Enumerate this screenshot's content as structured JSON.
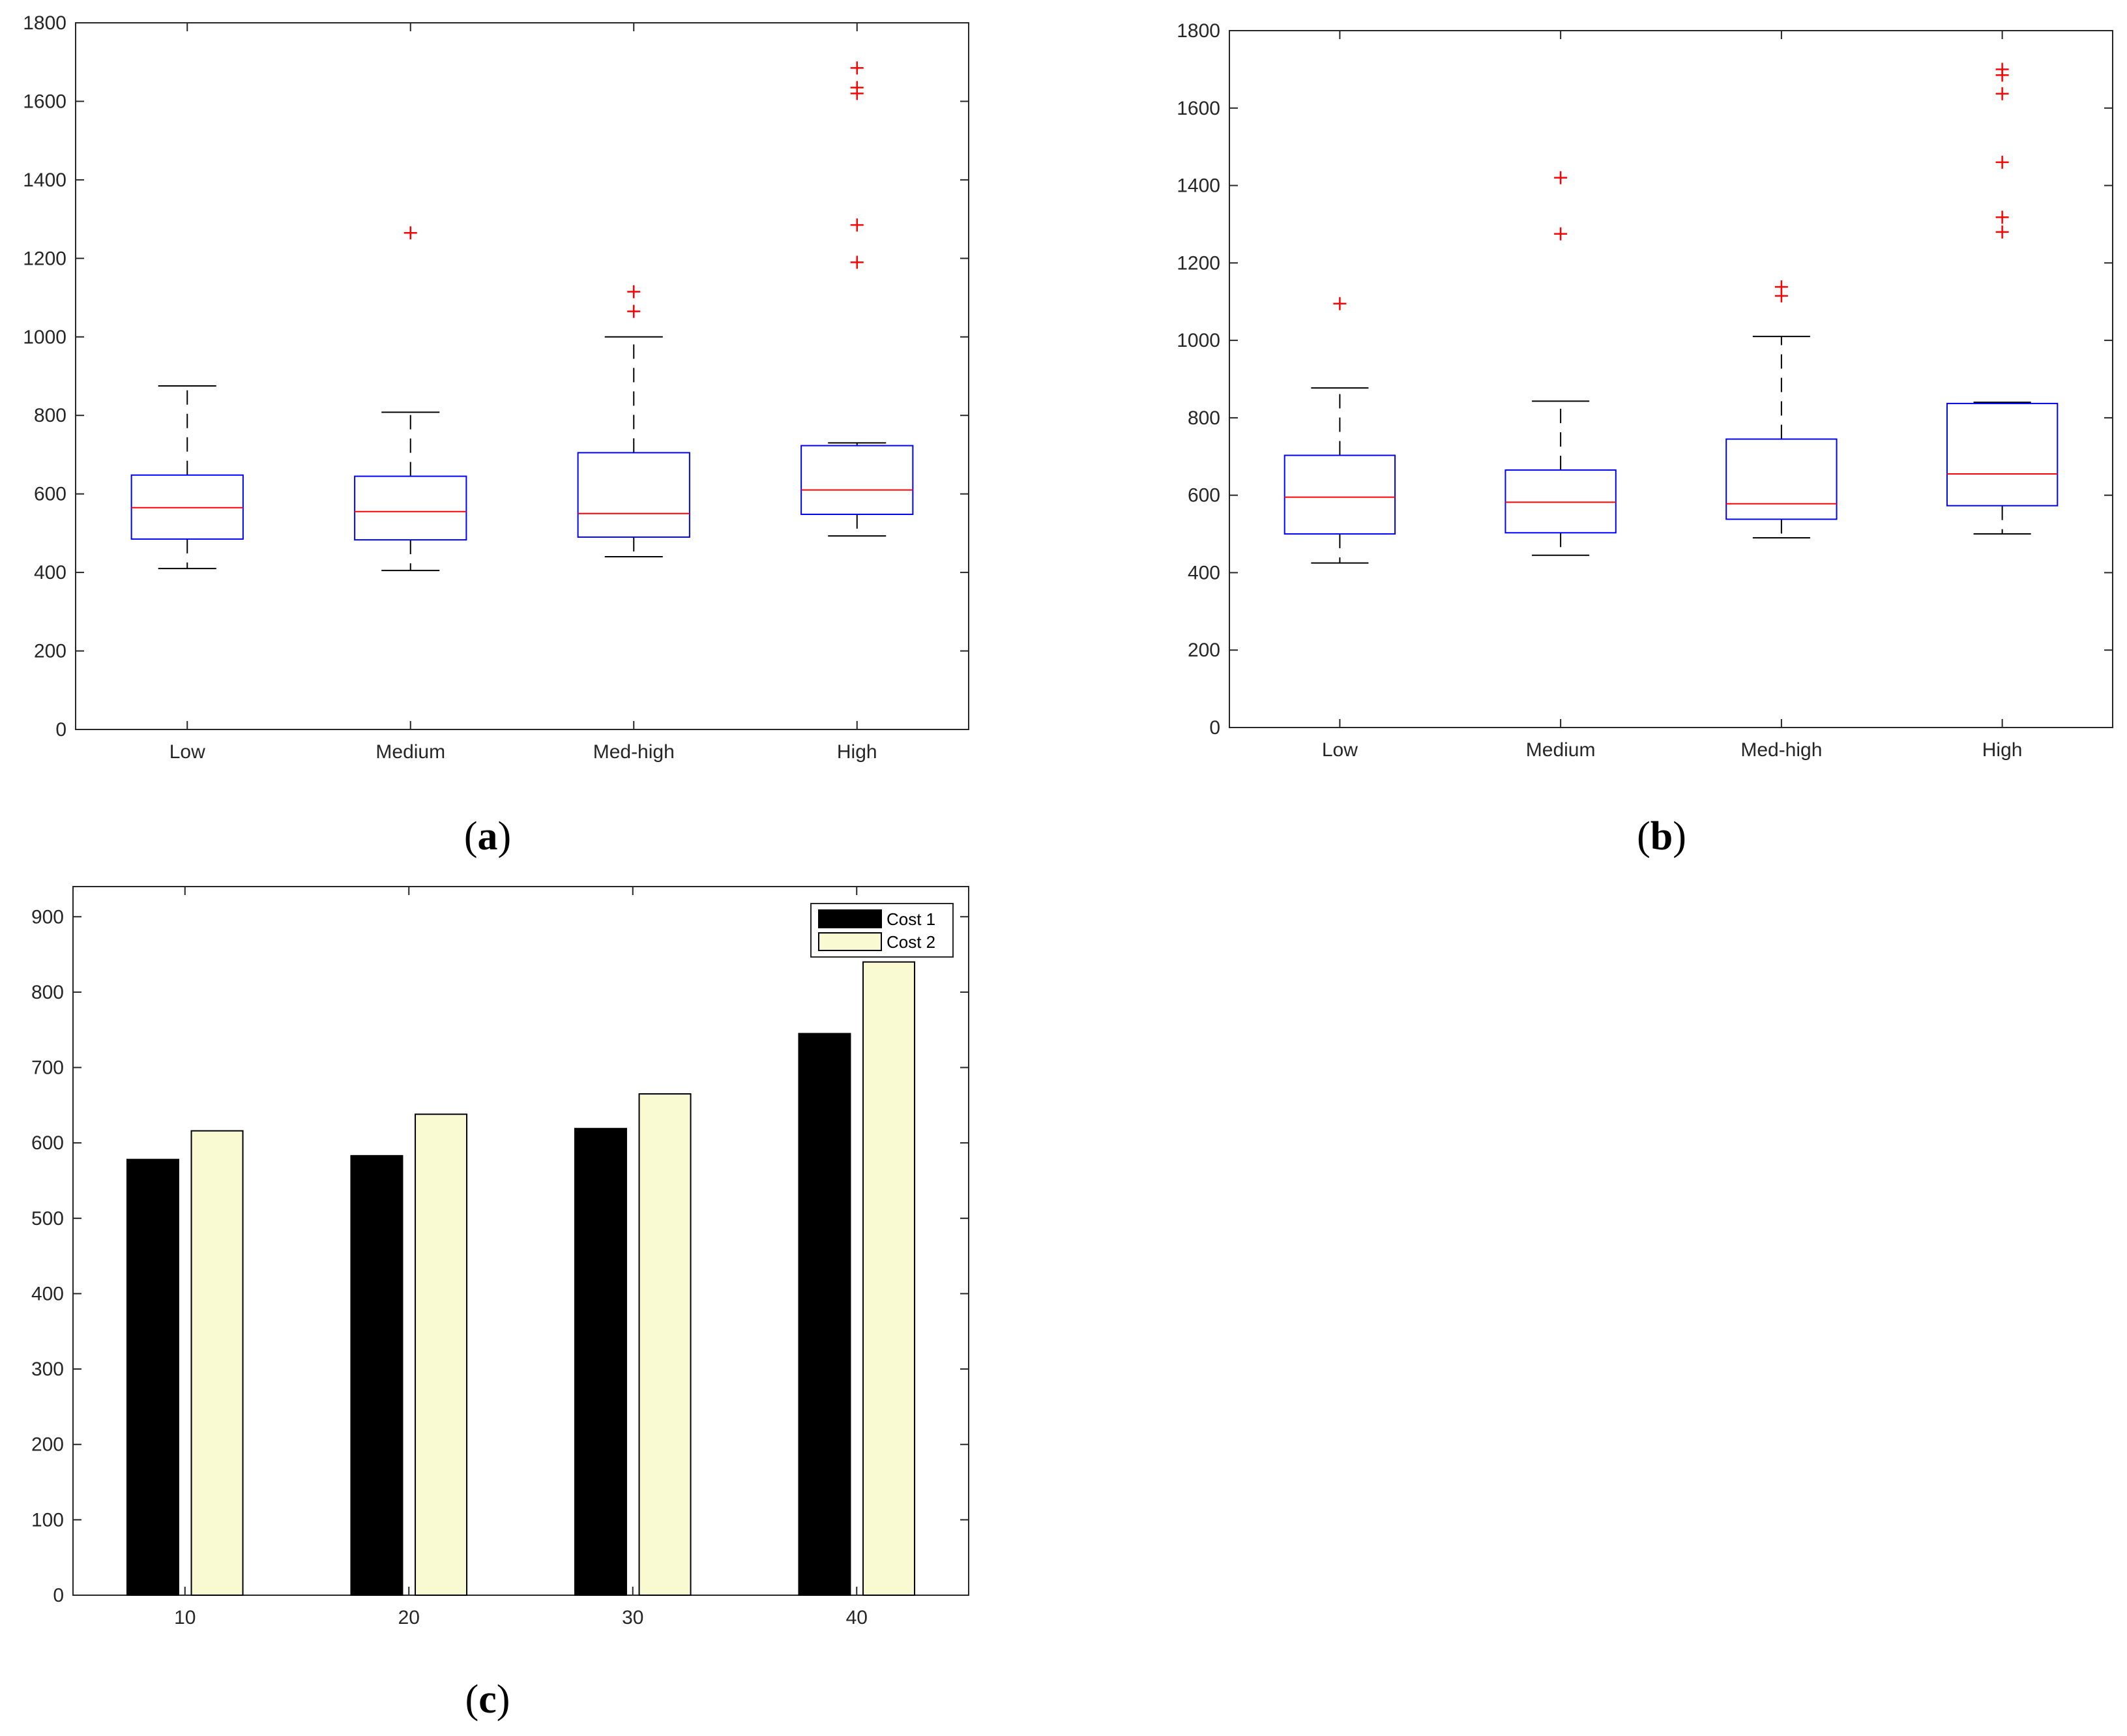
{
  "chart_data": [
    {
      "type": "boxplot",
      "caption": "(a)",
      "caption_letter": "a",
      "categories": [
        "Low",
        "Medium",
        "Med-high",
        "High"
      ],
      "ylim": [
        0,
        1800
      ],
      "yticks": [
        0,
        200,
        400,
        600,
        800,
        1000,
        1200,
        1400,
        1600,
        1800
      ],
      "grid": false,
      "colors": {
        "box": "#0000ff",
        "median": "#ff0000",
        "whisker": "#000000",
        "outlier": "#ff0000"
      },
      "boxes": [
        {
          "category": "Low",
          "whisker_low": 410,
          "q1": 485,
          "median": 565,
          "q3": 648,
          "whisker_high": 875,
          "outliers": []
        },
        {
          "category": "Medium",
          "whisker_low": 405,
          "q1": 483,
          "median": 555,
          "q3": 645,
          "whisker_high": 808,
          "outliers": [
            1265
          ]
        },
        {
          "category": "Med-high",
          "whisker_low": 440,
          "q1": 490,
          "median": 550,
          "q3": 705,
          "whisker_high": 1000,
          "outliers": [
            1065,
            1115
          ]
        },
        {
          "category": "High",
          "whisker_low": 493,
          "q1": 548,
          "median": 610,
          "q3": 723,
          "whisker_high": 730,
          "outliers": [
            1190,
            1285,
            1620,
            1635,
            1685
          ]
        }
      ]
    },
    {
      "type": "boxplot",
      "caption": "(b)",
      "caption_letter": "b",
      "categories": [
        "Low",
        "Medium",
        "Med-high",
        "High"
      ],
      "ylim": [
        0,
        1800
      ],
      "yticks": [
        0,
        200,
        400,
        600,
        800,
        1000,
        1200,
        1400,
        1600,
        1800
      ],
      "grid": false,
      "colors": {
        "box": "#0000ff",
        "median": "#ff0000",
        "whisker": "#000000",
        "outlier": "#ff0000"
      },
      "boxes": [
        {
          "category": "Low",
          "whisker_low": 425,
          "q1": 500,
          "median": 595,
          "q3": 703,
          "whisker_high": 877,
          "outliers": [
            1095
          ]
        },
        {
          "category": "Medium",
          "whisker_low": 445,
          "q1": 503,
          "median": 582,
          "q3": 665,
          "whisker_high": 843,
          "outliers": [
            1275,
            1420
          ]
        },
        {
          "category": "Med-high",
          "whisker_low": 490,
          "q1": 538,
          "median": 578,
          "q3": 745,
          "whisker_high": 1010,
          "outliers": [
            1115,
            1138
          ]
        },
        {
          "category": "High",
          "whisker_low": 500,
          "q1": 573,
          "median": 655,
          "q3": 837,
          "whisker_high": 840,
          "outliers": [
            1280,
            1318,
            1460,
            1637,
            1685,
            1700
          ]
        }
      ]
    },
    {
      "type": "bar",
      "caption": "(c)",
      "caption_letter": "c",
      "categories": [
        "10",
        "20",
        "30",
        "40"
      ],
      "ylim": [
        0,
        940
      ],
      "yticks": [
        0,
        100,
        200,
        300,
        400,
        500,
        600,
        700,
        800,
        900
      ],
      "grid": false,
      "legend_position": "top-right",
      "series": [
        {
          "name": "Cost 1",
          "color": "#000000",
          "values": [
            578,
            583,
            619,
            745
          ]
        },
        {
          "name": "Cost 2",
          "color": "#fafad2",
          "values": [
            616,
            638,
            665,
            840
          ]
        }
      ]
    }
  ]
}
